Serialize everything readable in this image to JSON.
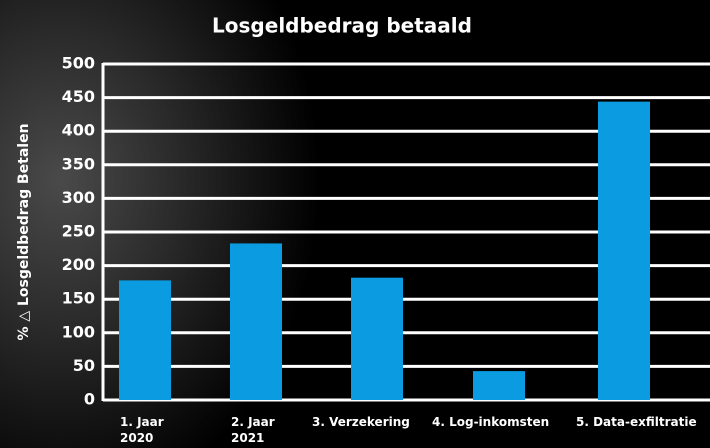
{
  "chart_data": {
    "type": "bar",
    "title": "Losgeldbedrag betaald",
    "y_label": "% △ Losgeldbedrag Betalen",
    "categories": [
      "1. Jaar 2020",
      "2. Jaar 2021",
      "3. Verzekering",
      "4. Log-inkomsten",
      "5. Data-exfiltratie"
    ],
    "values": [
      178,
      233,
      182,
      43,
      444
    ],
    "color": "#0a9be0",
    "ylim": [
      0,
      500
    ],
    "yticks": [
      0,
      50,
      100,
      150,
      200,
      250,
      300,
      350,
      400,
      450,
      500
    ],
    "grid": true
  }
}
